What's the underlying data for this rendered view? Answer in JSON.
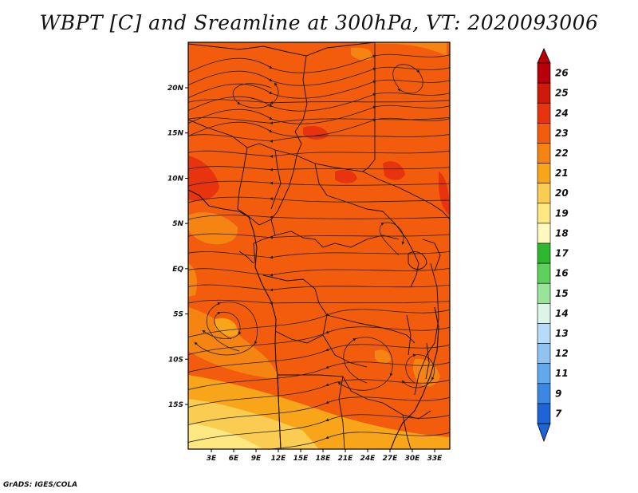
{
  "title": "WBPT [C] and Sreamline at 300hPa, VT: 2020093006",
  "footer": "GrADS: IGES/COLA",
  "map": {
    "region": "Central and Southern Africa",
    "lat_range": [
      -20,
      25
    ],
    "lon_range": [
      0,
      35
    ],
    "lat_ticks": [
      {
        "value": 20,
        "label": "20N"
      },
      {
        "value": 15,
        "label": "15N"
      },
      {
        "value": 10,
        "label": "10N"
      },
      {
        "value": 5,
        "label": "5N"
      },
      {
        "value": 0,
        "label": "EQ"
      },
      {
        "value": -5,
        "label": "5S"
      },
      {
        "value": -10,
        "label": "10S"
      },
      {
        "value": -15,
        "label": "15S"
      }
    ],
    "lon_ticks": [
      {
        "value": 3,
        "label": "3E"
      },
      {
        "value": 6,
        "label": "6E"
      },
      {
        "value": 9,
        "label": "9E"
      },
      {
        "value": 12,
        "label": "12E"
      },
      {
        "value": 15,
        "label": "15E"
      },
      {
        "value": 18,
        "label": "18E"
      },
      {
        "value": 21,
        "label": "21E"
      },
      {
        "value": 24,
        "label": "24E"
      },
      {
        "value": 27,
        "label": "27E"
      },
      {
        "value": 30,
        "label": "30E"
      },
      {
        "value": 33,
        "label": "33E"
      }
    ],
    "dominant_field_color": "#f25c0c",
    "streamline_color": "#222222"
  },
  "colorbar": {
    "levels": [
      {
        "label": "26",
        "color": "#b8000a"
      },
      {
        "label": "25",
        "color": "#d0180b"
      },
      {
        "label": "24",
        "color": "#e8340e"
      },
      {
        "label": "23",
        "color": "#f25c0c"
      },
      {
        "label": "22",
        "color": "#f58412"
      },
      {
        "label": "21",
        "color": "#f9a51a"
      },
      {
        "label": "20",
        "color": "#fbcc52"
      },
      {
        "label": "19",
        "color": "#fde882"
      },
      {
        "label": "18",
        "color": "#fff8c0"
      },
      {
        "label": "17",
        "color": "#2eb82e"
      },
      {
        "label": "16",
        "color": "#5ed05e"
      },
      {
        "label": "15",
        "color": "#9ae39a"
      },
      {
        "label": "14",
        "color": "#dcf5e8"
      },
      {
        "label": "13",
        "color": "#b6dcf7"
      },
      {
        "label": "12",
        "color": "#8fc4f2"
      },
      {
        "label": "11",
        "color": "#62a8ec"
      },
      {
        "label": "9",
        "color": "#3a88e3"
      },
      {
        "label": "7",
        "color": "#1e64d6"
      }
    ]
  }
}
